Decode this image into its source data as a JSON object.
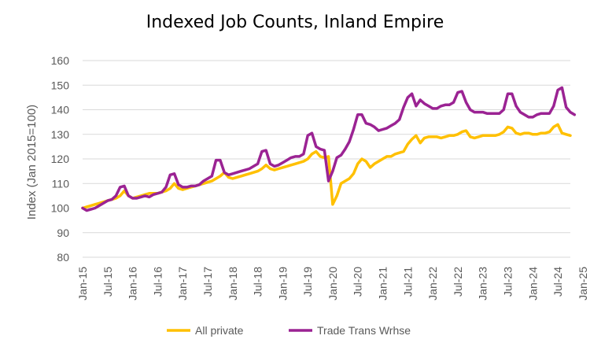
{
  "chart_data": {
    "type": "line",
    "title": "Indexed Job Counts, Inland Empire",
    "xlabel": "",
    "ylabel": "Index (Jan 2015=100)",
    "ylim": [
      80,
      160
    ],
    "yticks": [
      80,
      90,
      100,
      110,
      120,
      130,
      140,
      150,
      160
    ],
    "x_start": "Jan-15",
    "x_end": "Mar-25",
    "xtick_labels": [
      "Jan-15",
      "Jul-15",
      "Jan-16",
      "Jul-16",
      "Jan-17",
      "Jul-17",
      "Jan-18",
      "Jul-18",
      "Jan-19",
      "Jul-19",
      "Jan-20",
      "Jul-20",
      "Jan-21",
      "Jul-21",
      "Jan-22",
      "Jul-22",
      "Jan-23",
      "Jul-23",
      "Jan-24",
      "Jul-24",
      "Jan-25"
    ],
    "grid": "horizontal",
    "legend_position": "bottom",
    "series": [
      {
        "name": "All private",
        "color": "#FFC000",
        "values": [
          100,
          100.5,
          101,
          101.5,
          102,
          102.5,
          103,
          103.5,
          104,
          105,
          107,
          105,
          104,
          104.5,
          105,
          105.5,
          106,
          106,
          106,
          106.5,
          107,
          108,
          110,
          108,
          107.5,
          108,
          108.5,
          109,
          109.5,
          110,
          110.5,
          111,
          112,
          113,
          114.5,
          112.5,
          112,
          112.5,
          113,
          113.5,
          114,
          114.5,
          115,
          116,
          117.5,
          116,
          115.5,
          116,
          116.5,
          117,
          117.5,
          118,
          118.5,
          119,
          120,
          122,
          123,
          121,
          120.5,
          121,
          101.5,
          105,
          110,
          111,
          112,
          114,
          118,
          120,
          119,
          116.5,
          118,
          119,
          120,
          121,
          121,
          122,
          122.5,
          123,
          126,
          128,
          129.5,
          126.5,
          128.5,
          129,
          129,
          129,
          128.5,
          129,
          129.5,
          129.5,
          130,
          131,
          131.5,
          129,
          128.5,
          129,
          129.5,
          129.5,
          129.5,
          129.5,
          130,
          131,
          133,
          132.5,
          130.5,
          130,
          130.5,
          130.5,
          130,
          130,
          130.5,
          130.5,
          131,
          133,
          134,
          130.5,
          130,
          129.5
        ]
      },
      {
        "name": "Trade Trans Wrhse",
        "color": "#9B2393",
        "values": [
          100,
          99,
          99.5,
          100,
          101,
          102,
          103,
          103.5,
          105,
          108.5,
          109,
          105,
          104,
          104,
          104.5,
          105,
          104.5,
          105.5,
          106,
          106.5,
          108.5,
          113.5,
          114,
          109.5,
          108.5,
          108.5,
          109,
          109,
          109.5,
          111,
          112,
          113,
          119.5,
          119.5,
          114.5,
          113.5,
          114,
          114.5,
          115,
          115.5,
          116,
          117,
          118,
          123,
          123.5,
          118,
          117,
          117.5,
          118.5,
          119.5,
          120.5,
          121,
          121,
          122,
          129.5,
          130.5,
          125,
          124,
          123.5,
          111,
          115,
          120.5,
          121.5,
          124,
          127,
          132,
          138,
          138,
          134.5,
          134,
          133,
          131.5,
          132,
          132.5,
          133.5,
          134.5,
          136,
          141,
          145,
          146.5,
          141.5,
          144,
          142.5,
          141.5,
          140.5,
          140.5,
          141.5,
          142,
          142,
          143,
          147,
          147.5,
          143,
          140,
          139,
          139,
          139,
          138.5,
          138.5,
          138.5,
          138.5,
          140,
          146.5,
          146.5,
          141.5,
          139,
          138,
          137,
          137,
          138,
          138.5,
          138.5,
          138.5,
          141.5,
          148,
          149,
          141,
          139,
          138
        ]
      }
    ]
  }
}
